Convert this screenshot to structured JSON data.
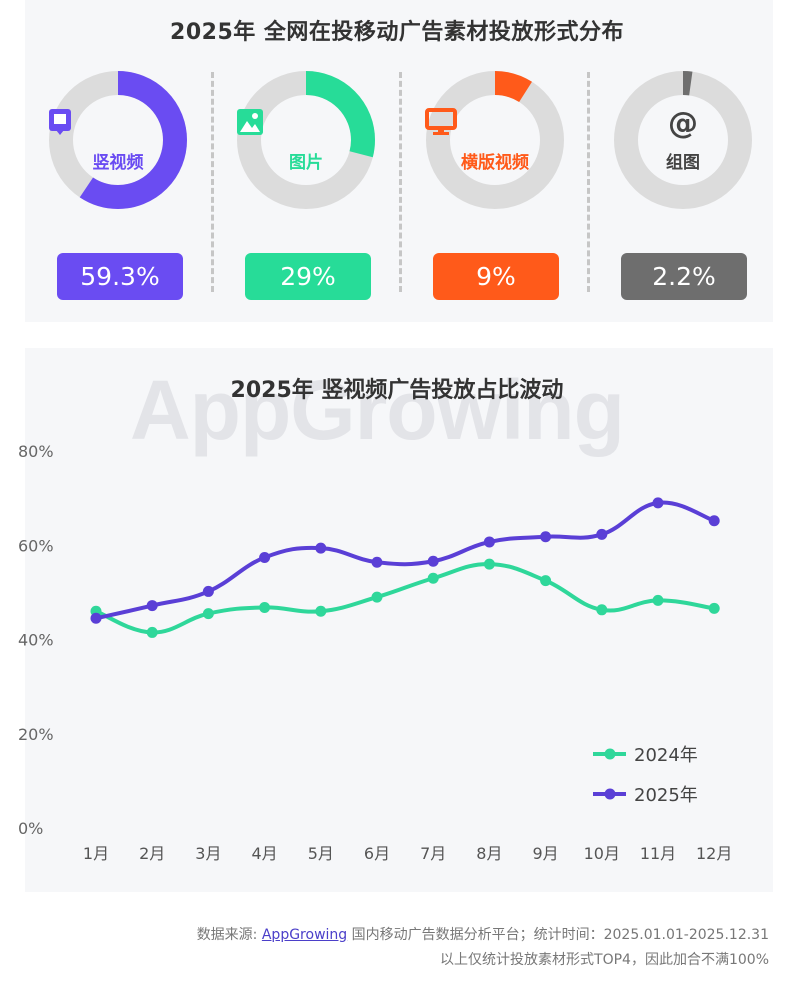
{
  "header": {
    "title": "2025年 全网在投移动广告素材投放形式分布"
  },
  "formats": [
    {
      "label": "竖视频",
      "percent_text": "59.3%",
      "value": 59.3,
      "color": "#6a4cf2",
      "icon": "vertical-video-icon"
    },
    {
      "label": "图片",
      "percent_text": "29%",
      "value": 29,
      "color": "#27dc98",
      "icon": "image-icon"
    },
    {
      "label": "横版视频",
      "percent_text": "9%",
      "value": 9,
      "color": "#ff5a1a",
      "icon": "monitor-icon"
    },
    {
      "label": "组图",
      "percent_text": "2.2%",
      "value": 2.2,
      "color": "#6e6e6e",
      "icon": "at-icon"
    }
  ],
  "chart_data": {
    "type": "line",
    "title": "2025年 竖视频广告投放占比波动",
    "categories": [
      "1月",
      "2月",
      "3月",
      "4月",
      "5月",
      "6月",
      "7月",
      "8月",
      "9月",
      "10月",
      "11月",
      "12月"
    ],
    "y_ticks": [
      "0%",
      "20%",
      "40%",
      "60%",
      "80%"
    ],
    "ylim": [
      0,
      80
    ],
    "legend_position": "bottom-right",
    "series": [
      {
        "name": "2024年",
        "color": "#2fd79a",
        "values": [
          46,
          41.5,
          45.5,
          46.8,
          46,
          49,
          53,
          56,
          52.5,
          46.3,
          48.3,
          46.6
        ]
      },
      {
        "name": "2025年",
        "color": "#5a3fd6",
        "values": [
          44.5,
          47.2,
          50.2,
          57.4,
          59.4,
          56.4,
          56.6,
          60.7,
          61.8,
          62.3,
          69,
          65.2
        ]
      }
    ]
  },
  "watermark": "AppGrowing",
  "footer": {
    "source_prefix": "数据来源: ",
    "source_link": "AppGrowing",
    "source_suffix": " 国内移动广告数据分析平台；统计时间：2025.01.01-2025.12.31",
    "note": "以上仅统计投放素材形式TOP4，因此加合不满100%"
  }
}
